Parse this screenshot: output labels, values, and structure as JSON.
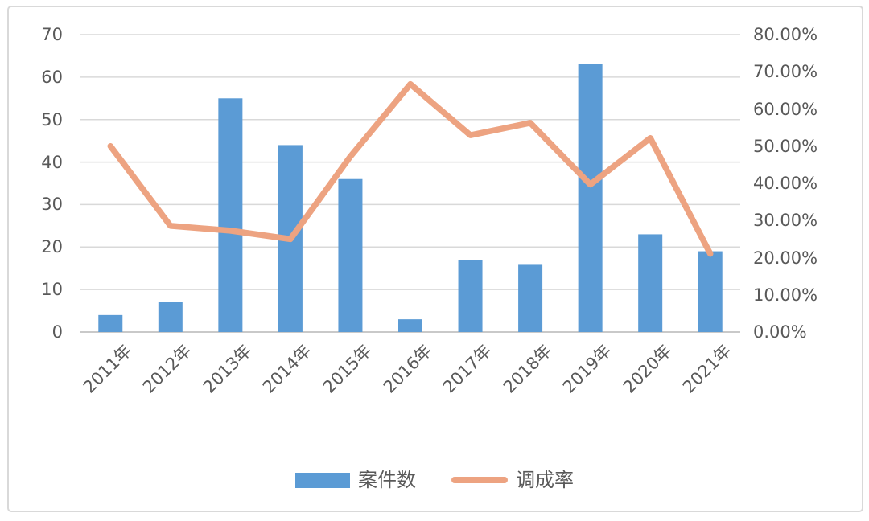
{
  "chart_data": {
    "type": "bar",
    "combo": "bar+line",
    "title": "",
    "categories": [
      "2011年",
      "2012年",
      "2013年",
      "2014年",
      "2015年",
      "2016年",
      "2017年",
      "2018年",
      "2019年",
      "2020年",
      "2021年"
    ],
    "series": [
      {
        "name": "案件数",
        "type": "bar",
        "axis": "left",
        "values": [
          4,
          7,
          55,
          44,
          36,
          3,
          17,
          16,
          63,
          23,
          19
        ]
      },
      {
        "name": "调成率",
        "type": "line",
        "axis": "right",
        "values_percent": [
          50.0,
          28.57,
          27.27,
          25.0,
          47.22,
          66.67,
          52.94,
          56.25,
          39.68,
          52.17,
          21.05
        ]
      }
    ],
    "left_axis": {
      "min": 0,
      "max": 70,
      "step": 10,
      "ticks_top_to_bottom": [
        "70",
        "60",
        "50",
        "40",
        "30",
        "20",
        "10",
        "0"
      ]
    },
    "right_axis": {
      "min_percent": 0,
      "max_percent": 80,
      "step_percent": 10,
      "ticks_top_to_bottom": [
        "80.00%",
        "70.00%",
        "60.00%",
        "50.00%",
        "40.00%",
        "30.00%",
        "20.00%",
        "10.00%",
        "0.00%"
      ]
    },
    "grid": true,
    "legend_position": "bottom"
  },
  "colors": {
    "bar": "#5B9BD5",
    "line": "#EDA381",
    "gridline": "#D9D9D9",
    "baseline": "#C9C9C9",
    "axis_text": "#595959",
    "frame_border": "#D9D9D9",
    "background": "#FFFFFF"
  }
}
